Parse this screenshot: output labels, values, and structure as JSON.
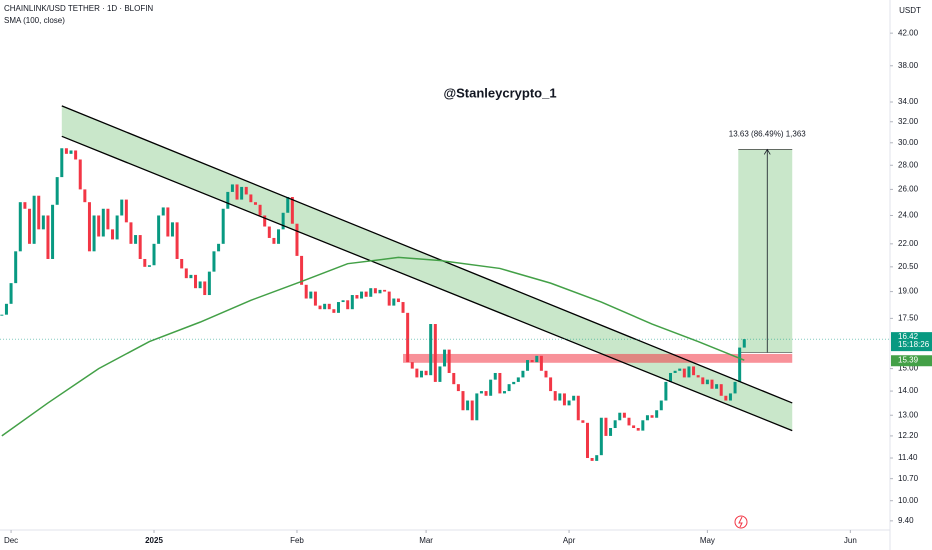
{
  "chart_data": {
    "type": "candlestick",
    "title": "CHAINLINK/USD TETHER · 1D · BLOFIN",
    "indicator": "SMA (100, close)",
    "watermark": "@Stanleycrypto_1",
    "currency": "USDT",
    "countdown": "15:18:26",
    "log_scale": true,
    "grid": false,
    "xlim": [
      -0.4,
      192.6
    ],
    "ylim": [
      9.14,
      46.5
    ],
    "yticks": [
      {
        "value": 9.4,
        "label": "9.40"
      },
      {
        "value": 10,
        "label": "10.00"
      },
      {
        "value": 10.7,
        "label": "10.70"
      },
      {
        "value": 11.4,
        "label": "11.40"
      },
      {
        "value": 12.2,
        "label": "12.20"
      },
      {
        "value": 13,
        "label": "13.00"
      },
      {
        "value": 14,
        "label": "14.00"
      },
      {
        "value": 15,
        "label": "15.00"
      },
      {
        "value": 17.5,
        "label": "17.50"
      },
      {
        "value": 19,
        "label": "19.00"
      },
      {
        "value": 20.5,
        "label": "20.50"
      },
      {
        "value": 22,
        "label": "22.00"
      },
      {
        "value": 24,
        "label": "24.00"
      },
      {
        "value": 26,
        "label": "26.00"
      },
      {
        "value": 28,
        "label": "28.00"
      },
      {
        "value": 30,
        "label": "30.00"
      },
      {
        "value": 32,
        "label": "32.00"
      },
      {
        "value": 34,
        "label": "34.00"
      },
      {
        "value": 38,
        "label": "38.00"
      },
      {
        "value": 42,
        "label": "42.00"
      }
    ],
    "xticks": [
      {
        "value": 2,
        "label": "Dec"
      },
      {
        "value": 33,
        "label": "2025"
      },
      {
        "value": 64,
        "label": "Feb"
      },
      {
        "value": 92,
        "label": "Mar"
      },
      {
        "value": 123,
        "label": "Apr"
      },
      {
        "value": 153,
        "label": "May"
      },
      {
        "value": 184,
        "label": "Jun"
      }
    ],
    "up_color": "#089981",
    "down_color": "#f23645",
    "candles": {
      "close": [
        17.7,
        18.3,
        19.5,
        21.5,
        25.0,
        24.5,
        22.0,
        25.5,
        23.0,
        24.0,
        21.0,
        24.8,
        27.0,
        29.5,
        29.0,
        29.3,
        28.5,
        26.0,
        25.0,
        21.5,
        24.0,
        22.5,
        24.5,
        23.0,
        22.3,
        24.0,
        25.2,
        23.5,
        22.0,
        22.6,
        21.0,
        20.5,
        20.6,
        22.0,
        24.0,
        24.6,
        22.5,
        23.5,
        21.0,
        20.4,
        19.8,
        20.0,
        19.2,
        19.6,
        18.8,
        20.2,
        21.5,
        22.0,
        24.5,
        25.8,
        26.4,
        25.2,
        26.2,
        25.6,
        25.0,
        24.8,
        24.0,
        23.2,
        22.4,
        22.0,
        23.0,
        24.2,
        25.4,
        23.4,
        21.2,
        19.4,
        18.6,
        19.0,
        18.2,
        18.0,
        18.3,
        18.0,
        17.8,
        18.4,
        18.5,
        18.0,
        18.8,
        18.6,
        19.0,
        18.7,
        19.2,
        18.9,
        19.1,
        19.0,
        18.2,
        18.6,
        18.4,
        17.8,
        15.3,
        15.0,
        14.6,
        14.9,
        14.7,
        17.2,
        14.4,
        15.1,
        15.9,
        14.8,
        14.3,
        14.0,
        13.2,
        13.6,
        12.8,
        13.9,
        14.0,
        13.8,
        14.5,
        14.8,
        13.9,
        14.0,
        14.3,
        14.4,
        14.6,
        14.9,
        15.4,
        15.3,
        15.6,
        14.9,
        14.6,
        14.0,
        13.6,
        13.9,
        13.4,
        13.6,
        13.8,
        12.8,
        12.7,
        11.4,
        11.3,
        11.5,
        12.9,
        12.2,
        12.5,
        12.8,
        13.1,
        12.9,
        12.6,
        12.5,
        12.4,
        12.8,
        13.0,
        12.9,
        13.2,
        13.6,
        14.4,
        14.8,
        14.9,
        15.0,
        14.6,
        15.1,
        14.7,
        14.6,
        14.3,
        14.5,
        14.1,
        14.3,
        13.8,
        13.6,
        13.9,
        14.4,
        16.0,
        16.42
      ]
    },
    "sma": {
      "color": "#43a047",
      "x": [
        0,
        10,
        21,
        32,
        43,
        54,
        65,
        75,
        86,
        95,
        108,
        119,
        130,
        141,
        151,
        161
      ],
      "values": [
        12.2,
        13.5,
        15.0,
        16.3,
        17.3,
        18.5,
        19.6,
        20.7,
        21.1,
        20.9,
        20.4,
        19.5,
        18.4,
        17.2,
        16.3,
        15.39
      ]
    },
    "channel": {
      "color": "#4caf50",
      "upper": {
        "x": [
          13,
          171.4
        ],
        "values": [
          33.6,
          13.5
        ]
      },
      "lower": {
        "x": [
          13,
          171.4
        ],
        "values": [
          30.6,
          12.4
        ]
      }
    },
    "zone": {
      "color": "#f23645",
      "x": [
        87,
        171.4
      ],
      "range": [
        15.27,
        15.69
      ]
    },
    "position": {
      "color": "#4caf50",
      "x": [
        159.7,
        171.4
      ],
      "entry": 15.76,
      "target": 29.39,
      "label": "13.63 (86.49%) 1,363"
    }
  }
}
